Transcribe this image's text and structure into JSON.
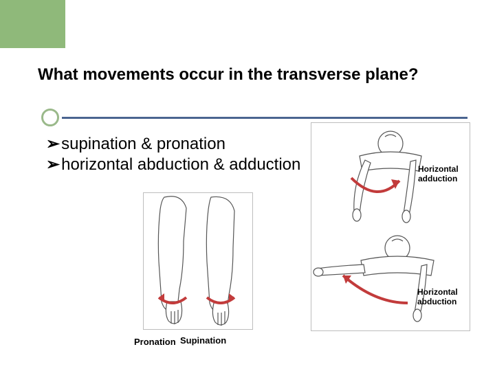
{
  "layout": {
    "green_bar_color": "#8fb97a",
    "divider_color": "#4a6490",
    "bg_color": "#ffffff"
  },
  "title": "What movements occur in the transverse plane?",
  "bullets": [
    "supination & pronation",
    " horizontal abduction & adduction"
  ],
  "figures": {
    "left": {
      "caption_left": "Pronation",
      "caption_right": "Supination",
      "arrow_color": "#c23b3b",
      "outline_color": "#555555"
    },
    "right": {
      "top_caption": "Horizontal\nadduction",
      "bottom_caption": "Horizontal\nabduction",
      "arrow_color": "#c23b3b",
      "outline_color": "#555555"
    }
  }
}
